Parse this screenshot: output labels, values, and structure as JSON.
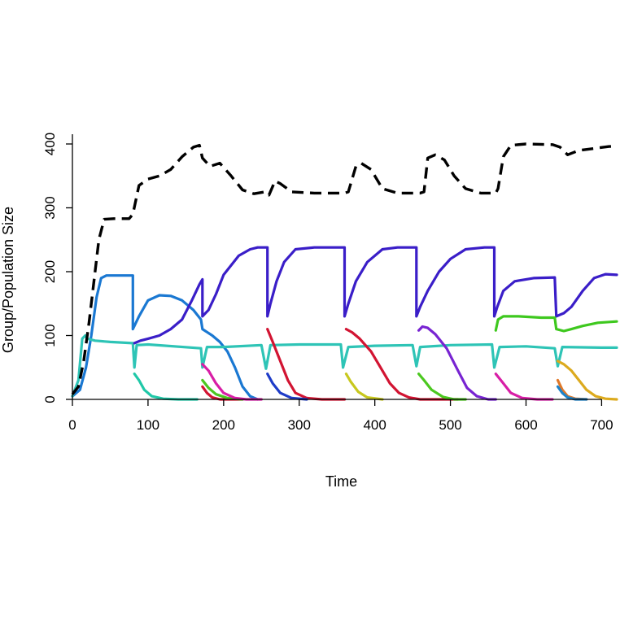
{
  "chart_data": {
    "type": "line",
    "title": "",
    "xlabel": "Time",
    "ylabel": "Group/Population Size",
    "xlim": [
      0,
      720
    ],
    "ylim": [
      0,
      400
    ],
    "x_ticks": [
      0,
      100,
      200,
      300,
      400,
      500,
      600,
      700
    ],
    "y_ticks": [
      0,
      100,
      200,
      300,
      400
    ],
    "grid": false,
    "legend": "none",
    "series": [
      {
        "color": "#000000",
        "style": "dashed",
        "points": [
          [
            0,
            8
          ],
          [
            8,
            20
          ],
          [
            15,
            60
          ],
          [
            22,
            120
          ],
          [
            28,
            180
          ],
          [
            35,
            250
          ],
          [
            42,
            282
          ],
          [
            55,
            283
          ],
          [
            75,
            283
          ],
          [
            80,
            290
          ],
          [
            88,
            335
          ],
          [
            100,
            345
          ],
          [
            115,
            350
          ],
          [
            130,
            360
          ],
          [
            145,
            380
          ],
          [
            160,
            395
          ],
          [
            168,
            398
          ],
          [
            172,
            378
          ],
          [
            182,
            365
          ],
          [
            195,
            370
          ],
          [
            210,
            350
          ],
          [
            225,
            328
          ],
          [
            240,
            322
          ],
          [
            255,
            325
          ],
          [
            260,
            320
          ],
          [
            268,
            342
          ],
          [
            275,
            338
          ],
          [
            290,
            325
          ],
          [
            320,
            323
          ],
          [
            360,
            323
          ],
          [
            365,
            325
          ],
          [
            375,
            365
          ],
          [
            382,
            370
          ],
          [
            395,
            360
          ],
          [
            410,
            330
          ],
          [
            430,
            323
          ],
          [
            460,
            323
          ],
          [
            465,
            325
          ],
          [
            470,
            378
          ],
          [
            480,
            383
          ],
          [
            492,
            375
          ],
          [
            505,
            350
          ],
          [
            520,
            330
          ],
          [
            540,
            323
          ],
          [
            560,
            323
          ],
          [
            563,
            330
          ],
          [
            570,
            380
          ],
          [
            580,
            398
          ],
          [
            600,
            400
          ],
          [
            635,
            399
          ],
          [
            645,
            395
          ],
          [
            655,
            383
          ],
          [
            670,
            390
          ],
          [
            690,
            393
          ],
          [
            710,
            396
          ],
          [
            720,
            396
          ]
        ]
      },
      {
        "color": "#1a78d2",
        "style": "solid",
        "points": [
          [
            0,
            5
          ],
          [
            10,
            15
          ],
          [
            18,
            50
          ],
          [
            25,
            100
          ],
          [
            32,
            160
          ],
          [
            38,
            190
          ],
          [
            45,
            194
          ],
          [
            80,
            194
          ],
          [
            80,
            110
          ],
          [
            88,
            130
          ],
          [
            100,
            155
          ],
          [
            115,
            163
          ],
          [
            130,
            162
          ],
          [
            145,
            155
          ],
          [
            160,
            140
          ],
          [
            170,
            125
          ],
          [
            172,
            110
          ],
          [
            185,
            100
          ],
          [
            195,
            90
          ],
          [
            205,
            75
          ],
          [
            215,
            50
          ],
          [
            225,
            20
          ],
          [
            235,
            5
          ],
          [
            245,
            0
          ]
        ]
      },
      {
        "color": "#2ec4b6",
        "style": "solid",
        "points": [
          [
            0,
            5
          ],
          [
            8,
            30
          ],
          [
            13,
            95
          ],
          [
            17,
            100
          ],
          [
            20,
            95
          ],
          [
            30,
            92
          ],
          [
            50,
            90
          ],
          [
            80,
            88
          ],
          [
            82,
            50
          ],
          [
            85,
            85
          ],
          [
            100,
            86
          ],
          [
            170,
            80
          ],
          [
            172,
            50
          ],
          [
            178,
            82
          ],
          [
            200,
            82
          ],
          [
            250,
            85
          ],
          [
            256,
            48
          ],
          [
            262,
            85
          ],
          [
            300,
            86
          ],
          [
            355,
            86
          ],
          [
            358,
            50
          ],
          [
            365,
            82
          ],
          [
            400,
            84
          ],
          [
            450,
            85
          ],
          [
            455,
            52
          ],
          [
            460,
            82
          ],
          [
            500,
            85
          ],
          [
            555,
            86
          ],
          [
            558,
            50
          ],
          [
            565,
            82
          ],
          [
            600,
            83
          ],
          [
            638,
            80
          ],
          [
            642,
            52
          ],
          [
            648,
            82
          ],
          [
            700,
            81
          ],
          [
            720,
            81
          ]
        ]
      },
      {
        "color": "#20c8a8",
        "style": "solid",
        "points": [
          [
            82,
            40
          ],
          [
            88,
            30
          ],
          [
            95,
            15
          ],
          [
            105,
            5
          ],
          [
            120,
            1
          ],
          [
            140,
            0
          ],
          [
            165,
            0
          ]
        ]
      },
      {
        "color": "#3a1ec8",
        "style": "solid",
        "points": [
          [
            82,
            88
          ],
          [
            90,
            92
          ],
          [
            100,
            95
          ],
          [
            115,
            100
          ],
          [
            130,
            110
          ],
          [
            145,
            125
          ],
          [
            158,
            155
          ],
          [
            168,
            180
          ],
          [
            172,
            188
          ],
          [
            172,
            130
          ],
          [
            180,
            140
          ],
          [
            190,
            165
          ],
          [
            200,
            195
          ],
          [
            210,
            210
          ],
          [
            220,
            225
          ],
          [
            235,
            235
          ],
          [
            245,
            238
          ],
          [
            258,
            238
          ],
          [
            258,
            130
          ],
          [
            262,
            150
          ],
          [
            270,
            185
          ],
          [
            280,
            215
          ],
          [
            295,
            235
          ],
          [
            320,
            238
          ],
          [
            360,
            238
          ],
          [
            360,
            130
          ],
          [
            365,
            150
          ],
          [
            375,
            185
          ],
          [
            390,
            215
          ],
          [
            410,
            235
          ],
          [
            430,
            238
          ],
          [
            455,
            238
          ],
          [
            455,
            130
          ],
          [
            460,
            145
          ],
          [
            470,
            170
          ],
          [
            485,
            200
          ],
          [
            500,
            220
          ],
          [
            520,
            235
          ],
          [
            545,
            238
          ],
          [
            558,
            238
          ],
          [
            558,
            130
          ],
          [
            562,
            145
          ],
          [
            570,
            170
          ],
          [
            585,
            185
          ],
          [
            610,
            190
          ],
          [
            638,
            191
          ],
          [
            640,
            130
          ],
          [
            650,
            135
          ],
          [
            660,
            145
          ],
          [
            675,
            170
          ],
          [
            690,
            190
          ],
          [
            705,
            196
          ],
          [
            720,
            195
          ]
        ]
      },
      {
        "color": "#d21432",
        "style": "solid",
        "points": [
          [
            172,
            20
          ],
          [
            178,
            10
          ],
          [
            185,
            3
          ],
          [
            195,
            0
          ],
          [
            210,
            0
          ],
          [
            225,
            0
          ]
        ]
      },
      {
        "color": "#4cc820",
        "style": "solid",
        "points": [
          [
            172,
            30
          ],
          [
            180,
            18
          ],
          [
            190,
            8
          ],
          [
            205,
            2
          ],
          [
            225,
            0
          ]
        ]
      },
      {
        "color": "#d81ea6",
        "style": "solid",
        "points": [
          [
            172,
            55
          ],
          [
            180,
            45
          ],
          [
            190,
            25
          ],
          [
            200,
            10
          ],
          [
            215,
            2
          ],
          [
            230,
            0
          ],
          [
            250,
            0
          ]
        ]
      },
      {
        "color": "#d21432",
        "style": "solid",
        "points": [
          [
            258,
            110
          ],
          [
            265,
            90
          ],
          [
            275,
            60
          ],
          [
            285,
            30
          ],
          [
            295,
            10
          ],
          [
            310,
            2
          ],
          [
            330,
            0
          ],
          [
            360,
            0
          ]
        ]
      },
      {
        "color": "#1e3cc8",
        "style": "solid",
        "points": [
          [
            258,
            40
          ],
          [
            265,
            25
          ],
          [
            275,
            10
          ],
          [
            290,
            2
          ],
          [
            310,
            0
          ]
        ]
      },
      {
        "color": "#c8c81e",
        "style": "solid",
        "points": [
          [
            362,
            40
          ],
          [
            368,
            28
          ],
          [
            378,
            12
          ],
          [
            390,
            3
          ],
          [
            410,
            0
          ]
        ]
      },
      {
        "color": "#d21432",
        "style": "solid",
        "points": [
          [
            362,
            110
          ],
          [
            370,
            105
          ],
          [
            380,
            95
          ],
          [
            395,
            75
          ],
          [
            410,
            45
          ],
          [
            420,
            25
          ],
          [
            432,
            10
          ],
          [
            445,
            3
          ],
          [
            460,
            0
          ],
          [
            510,
            0
          ]
        ]
      },
      {
        "color": "#4cc820",
        "style": "solid",
        "points": [
          [
            458,
            40
          ],
          [
            465,
            30
          ],
          [
            475,
            15
          ],
          [
            490,
            4
          ],
          [
            505,
            0
          ],
          [
            520,
            0
          ]
        ]
      },
      {
        "color": "#7824d2",
        "style": "solid",
        "points": [
          [
            458,
            108
          ],
          [
            463,
            114
          ],
          [
            470,
            112
          ],
          [
            480,
            102
          ],
          [
            495,
            80
          ],
          [
            510,
            45
          ],
          [
            522,
            18
          ],
          [
            535,
            5
          ],
          [
            550,
            0
          ],
          [
            560,
            0
          ]
        ]
      },
      {
        "color": "#d81ea6",
        "style": "solid",
        "points": [
          [
            560,
            40
          ],
          [
            568,
            28
          ],
          [
            580,
            10
          ],
          [
            595,
            2
          ],
          [
            615,
            0
          ],
          [
            635,
            0
          ]
        ]
      },
      {
        "color": "#3ec81e",
        "style": "solid",
        "points": [
          [
            560,
            108
          ],
          [
            563,
            125
          ],
          [
            570,
            130
          ],
          [
            590,
            130
          ],
          [
            620,
            128
          ],
          [
            638,
            128
          ],
          [
            640,
            110
          ],
          [
            650,
            107
          ],
          [
            660,
            110
          ],
          [
            675,
            115
          ],
          [
            695,
            120
          ],
          [
            720,
            122
          ]
        ]
      },
      {
        "color": "#e07828",
        "style": "solid",
        "points": [
          [
            642,
            30
          ],
          [
            648,
            15
          ],
          [
            655,
            5
          ],
          [
            665,
            1
          ],
          [
            680,
            0
          ]
        ]
      },
      {
        "color": "#1e82c8",
        "style": "solid",
        "points": [
          [
            642,
            20
          ],
          [
            648,
            10
          ],
          [
            655,
            3
          ],
          [
            665,
            0
          ],
          [
            680,
            0
          ]
        ]
      },
      {
        "color": "#dcaa1e",
        "style": "solid",
        "points": [
          [
            642,
            60
          ],
          [
            650,
            55
          ],
          [
            660,
            45
          ],
          [
            670,
            30
          ],
          [
            680,
            15
          ],
          [
            692,
            5
          ],
          [
            705,
            1
          ],
          [
            720,
            0
          ]
        ]
      }
    ]
  }
}
